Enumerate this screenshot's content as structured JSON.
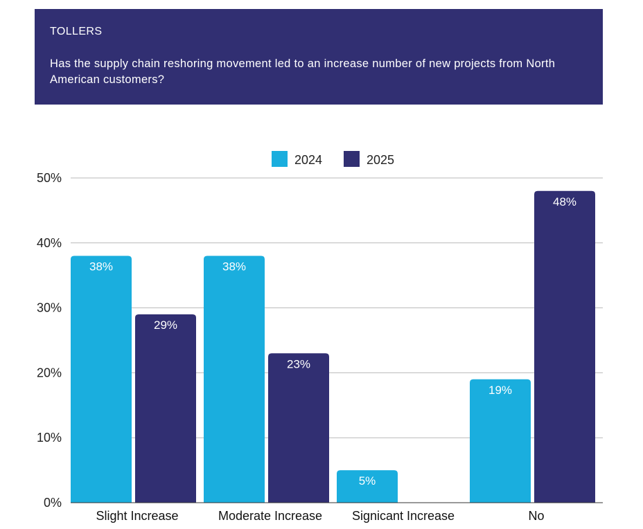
{
  "header": {
    "section": "TOLLERS",
    "question": "Has the supply chain reshoring movement led to an increase number of new projects from North American customers?"
  },
  "colors": {
    "header_bg": "#312f72",
    "series_2024": "#1aaede",
    "series_2025": "#312f72"
  },
  "chart_data": {
    "type": "bar",
    "categories": [
      "Slight Increase",
      "Moderate Increase",
      "Signicant Increase",
      "No"
    ],
    "series": [
      {
        "name": "2024",
        "values": [
          38,
          38,
          5,
          19
        ],
        "labels": [
          "38%",
          "38%",
          "5%",
          "19%"
        ]
      },
      {
        "name": "2025",
        "values": [
          29,
          23,
          null,
          48
        ],
        "labels": [
          "29%",
          "23%",
          "",
          "48%"
        ]
      }
    ],
    "yticks": [
      "0%",
      "10%",
      "20%",
      "30%",
      "40%",
      "50%"
    ],
    "ylim": [
      0,
      50
    ],
    "grid": true,
    "legend": "top-center"
  }
}
